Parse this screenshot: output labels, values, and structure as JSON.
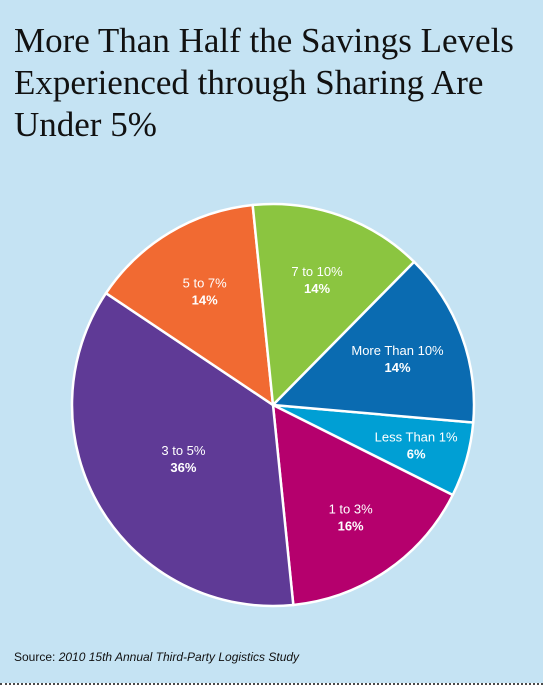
{
  "title": "More Than Half the Savings Levels Experienced through Sharing Are Under 5%",
  "source": {
    "prefix": "Source:",
    "citation": "2010 15th Annual Third-Party Logistics Study"
  },
  "chart_data": {
    "type": "pie",
    "title": "More Than Half the Savings Levels Experienced through Sharing Are Under 5%",
    "slices": [
      {
        "label": "Less Than 1%",
        "value": 6,
        "value_label": "6%",
        "color": "#009fd4"
      },
      {
        "label": "1 to 3%",
        "value": 16,
        "value_label": "16%",
        "color": "#b5006d"
      },
      {
        "label": "3 to 5%",
        "value": 36,
        "value_label": "36%",
        "color": "#5f3a96"
      },
      {
        "label": "5 to 7%",
        "value": 14,
        "value_label": "14%",
        "color": "#f16a32"
      },
      {
        "label": "7 to 10%",
        "value": 14,
        "value_label": "14%",
        "color": "#8bc540"
      },
      {
        "label": "More Than 10%",
        "value": 14,
        "value_label": "14%",
        "color": "#0a6bb1"
      }
    ]
  }
}
